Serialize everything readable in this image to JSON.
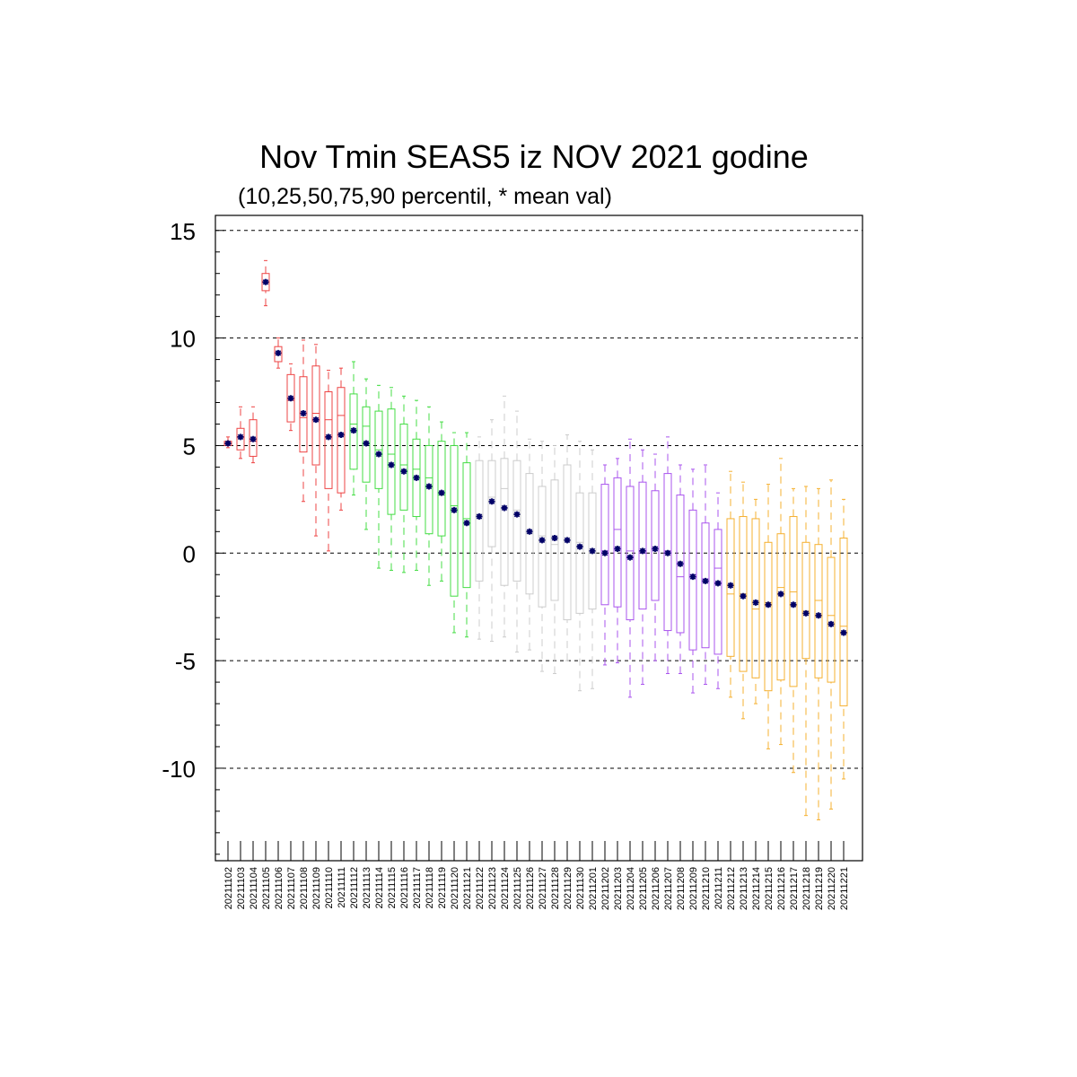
{
  "chart_data": {
    "type": "boxplot",
    "title": "Nov Tmin SEAS5 iz NOV 2021 godine",
    "subtitle": "(10,25,50,75,90 percentil, * mean val)",
    "ylim": [
      -14.3,
      15.7
    ],
    "yticks": [
      15,
      10,
      5,
      0,
      -5,
      -10
    ],
    "ytick_labels": [
      "15",
      "10",
      "5",
      "0",
      "-5",
      "-10"
    ],
    "grid": "horizontal-dashed",
    "colors": {
      "red": "#ee4444",
      "green": "#44dd44",
      "grey": "#cccccc",
      "purple": "#aa55ee",
      "orange": "#f5b030",
      "mean": "#000066"
    },
    "categories": [
      "20211102",
      "20211103",
      "20211104",
      "20211105",
      "20211106",
      "20211107",
      "20211108",
      "20211109",
      "20211110",
      "20211111",
      "20211112",
      "20211113",
      "20211114",
      "20211115",
      "20211116",
      "20211117",
      "20211118",
      "20211119",
      "20211120",
      "20211121",
      "20211122",
      "20211123",
      "20211124",
      "20211125",
      "20211126",
      "20211127",
      "20211128",
      "20211129",
      "20211130",
      "20211201",
      "20211202",
      "20211203",
      "20211204",
      "20211205",
      "20211206",
      "20211207",
      "20211208",
      "20211209",
      "20211210",
      "20211211",
      "20211212",
      "20211213",
      "20211214",
      "20211215",
      "20211216",
      "20211217",
      "20211218",
      "20211219",
      "20211220",
      "20211221"
    ],
    "boxes": [
      {
        "color": "red",
        "p10": 4.9,
        "p25": 5.0,
        "p50": 5.1,
        "p75": 5.2,
        "p90": 5.4,
        "mean": 5.1
      },
      {
        "color": "red",
        "p10": 4.4,
        "p25": 4.8,
        "p50": 5.4,
        "p75": 5.8,
        "p90": 6.8,
        "mean": 5.4
      },
      {
        "color": "red",
        "p10": 4.2,
        "p25": 4.5,
        "p50": 5.2,
        "p75": 6.2,
        "p90": 6.8,
        "mean": 5.3
      },
      {
        "color": "red",
        "p10": 11.5,
        "p25": 12.2,
        "p50": 12.6,
        "p75": 13.0,
        "p90": 13.6,
        "mean": 12.6
      },
      {
        "color": "red",
        "p10": 8.6,
        "p25": 8.9,
        "p50": 9.3,
        "p75": 9.6,
        "p90": 10.0,
        "mean": 9.3
      },
      {
        "color": "red",
        "p10": 5.7,
        "p25": 6.1,
        "p50": 7.1,
        "p75": 8.3,
        "p90": 8.8,
        "mean": 7.2
      },
      {
        "color": "red",
        "p10": 2.4,
        "p25": 4.7,
        "p50": 6.3,
        "p75": 8.2,
        "p90": 9.9,
        "mean": 6.5
      },
      {
        "color": "red",
        "p10": 0.8,
        "p25": 4.1,
        "p50": 6.5,
        "p75": 8.7,
        "p90": 9.7,
        "mean": 6.2
      },
      {
        "color": "red",
        "p10": 0.1,
        "p25": 3.0,
        "p50": 6.2,
        "p75": 7.5,
        "p90": 8.5,
        "mean": 5.4
      },
      {
        "color": "red",
        "p10": 2.0,
        "p25": 2.8,
        "p50": 6.4,
        "p75": 7.7,
        "p90": 8.6,
        "mean": 5.5
      },
      {
        "color": "green",
        "p10": 2.7,
        "p25": 3.9,
        "p50": 6.0,
        "p75": 7.4,
        "p90": 8.9,
        "mean": 5.7
      },
      {
        "color": "green",
        "p10": 1.1,
        "p25": 3.3,
        "p50": 5.9,
        "p75": 6.8,
        "p90": 8.1,
        "mean": 5.1
      },
      {
        "color": "green",
        "p10": -0.7,
        "p25": 3.0,
        "p50": 4.8,
        "p75": 6.6,
        "p90": 7.8,
        "mean": 4.6
      },
      {
        "color": "green",
        "p10": -0.8,
        "p25": 1.8,
        "p50": 4.6,
        "p75": 6.7,
        "p90": 7.7,
        "mean": 4.1
      },
      {
        "color": "green",
        "p10": -0.9,
        "p25": 2.0,
        "p50": 4.1,
        "p75": 6.0,
        "p90": 7.3,
        "mean": 3.8
      },
      {
        "color": "green",
        "p10": -0.8,
        "p25": 1.7,
        "p50": 3.9,
        "p75": 5.3,
        "p90": 7.1,
        "mean": 3.5
      },
      {
        "color": "green",
        "p10": -1.5,
        "p25": 0.9,
        "p50": 3.5,
        "p75": 5.0,
        "p90": 6.8,
        "mean": 3.1
      },
      {
        "color": "green",
        "p10": -1.3,
        "p25": 0.8,
        "p50": 2.7,
        "p75": 5.2,
        "p90": 6.1,
        "mean": 2.8
      },
      {
        "color": "green",
        "p10": -3.7,
        "p25": -2.0,
        "p50": 2.2,
        "p75": 5.0,
        "p90": 5.6,
        "mean": 2.0
      },
      {
        "color": "green",
        "p10": -3.9,
        "p25": -1.6,
        "p50": 1.6,
        "p75": 4.2,
        "p90": 5.6,
        "mean": 1.4
      },
      {
        "color": "grey",
        "p10": -4.0,
        "p25": -1.3,
        "p50": 1.8,
        "p75": 4.3,
        "p90": 5.4,
        "mean": 1.7
      },
      {
        "color": "grey",
        "p10": -4.1,
        "p25": 0.3,
        "p50": 2.6,
        "p75": 4.3,
        "p90": 6.2,
        "mean": 2.4
      },
      {
        "color": "grey",
        "p10": -3.9,
        "p25": -1.5,
        "p50": 3.0,
        "p75": 4.4,
        "p90": 7.3,
        "mean": 2.1
      },
      {
        "color": "grey",
        "p10": -4.6,
        "p25": -1.3,
        "p50": 2.0,
        "p75": 4.3,
        "p90": 6.6,
        "mean": 1.8
      },
      {
        "color": "grey",
        "p10": -4.5,
        "p25": -1.9,
        "p50": 0.9,
        "p75": 3.7,
        "p90": 5.3,
        "mean": 1.0
      },
      {
        "color": "grey",
        "p10": -5.5,
        "p25": -2.5,
        "p50": 0.8,
        "p75": 3.1,
        "p90": 5.2,
        "mean": 0.6
      },
      {
        "color": "grey",
        "p10": -5.6,
        "p25": -2.2,
        "p50": 0.4,
        "p75": 3.4,
        "p90": 5.0,
        "mean": 0.7
      },
      {
        "color": "grey",
        "p10": -5.0,
        "p25": -3.1,
        "p50": 0.6,
        "p75": 4.1,
        "p90": 5.5,
        "mean": 0.6
      },
      {
        "color": "grey",
        "p10": -6.4,
        "p25": -2.8,
        "p50": 0.5,
        "p75": 2.8,
        "p90": 5.2,
        "mean": 0.3
      },
      {
        "color": "grey",
        "p10": -6.3,
        "p25": -2.6,
        "p50": 0.0,
        "p75": 2.8,
        "p90": 4.8,
        "mean": 0.1
      },
      {
        "color": "purple",
        "p10": -5.2,
        "p25": -2.4,
        "p50": 0.1,
        "p75": 3.2,
        "p90": 4.1,
        "mean": 0.0
      },
      {
        "color": "purple",
        "p10": -5.1,
        "p25": -2.5,
        "p50": 1.1,
        "p75": 3.5,
        "p90": 4.4,
        "mean": 0.2
      },
      {
        "color": "purple",
        "p10": -6.7,
        "p25": -3.1,
        "p50": 0.1,
        "p75": 3.1,
        "p90": 5.3,
        "mean": -0.2
      },
      {
        "color": "purple",
        "p10": -6.1,
        "p25": -2.6,
        "p50": 0.0,
        "p75": 3.3,
        "p90": 4.8,
        "mean": 0.1
      },
      {
        "color": "purple",
        "p10": -5.0,
        "p25": -2.2,
        "p50": 0.2,
        "p75": 2.9,
        "p90": 4.6,
        "mean": 0.2
      },
      {
        "color": "purple",
        "p10": -5.6,
        "p25": -3.6,
        "p50": 0.1,
        "p75": 3.7,
        "p90": 5.4,
        "mean": 0.0
      },
      {
        "color": "purple",
        "p10": -5.6,
        "p25": -3.7,
        "p50": -1.1,
        "p75": 2.7,
        "p90": 4.1,
        "mean": -0.5
      },
      {
        "color": "purple",
        "p10": -6.5,
        "p25": -4.5,
        "p50": -1.0,
        "p75": 2.0,
        "p90": 3.9,
        "mean": -1.1
      },
      {
        "color": "purple",
        "p10": -6.1,
        "p25": -4.4,
        "p50": -1.2,
        "p75": 1.4,
        "p90": 4.1,
        "mean": -1.3
      },
      {
        "color": "purple",
        "p10": -6.3,
        "p25": -4.7,
        "p50": -0.7,
        "p75": 1.1,
        "p90": 2.8,
        "mean": -1.4
      },
      {
        "color": "orange",
        "p10": -6.7,
        "p25": -4.8,
        "p50": -1.9,
        "p75": 1.6,
        "p90": 3.8,
        "mean": -1.5
      },
      {
        "color": "orange",
        "p10": -7.7,
        "p25": -5.5,
        "p50": -1.9,
        "p75": 1.7,
        "p90": 3.3,
        "mean": -2.0
      },
      {
        "color": "orange",
        "p10": -7.0,
        "p25": -5.8,
        "p50": -2.6,
        "p75": 1.6,
        "p90": 2.5,
        "mean": -2.3
      },
      {
        "color": "orange",
        "p10": -9.1,
        "p25": -6.4,
        "p50": -2.3,
        "p75": 0.5,
        "p90": 3.2,
        "mean": -2.4
      },
      {
        "color": "orange",
        "p10": -8.9,
        "p25": -5.9,
        "p50": -1.6,
        "p75": 0.9,
        "p90": 4.4,
        "mean": -1.9
      },
      {
        "color": "orange",
        "p10": -10.2,
        "p25": -6.2,
        "p50": -1.8,
        "p75": 1.7,
        "p90": 3.0,
        "mean": -2.4
      },
      {
        "color": "orange",
        "p10": -12.2,
        "p25": -4.9,
        "p50": -2.7,
        "p75": 0.5,
        "p90": 3.1,
        "mean": -2.8
      },
      {
        "color": "orange",
        "p10": -12.4,
        "p25": -5.8,
        "p50": -2.2,
        "p75": 0.4,
        "p90": 3.0,
        "mean": -2.9
      },
      {
        "color": "orange",
        "p10": -11.9,
        "p25": -6.0,
        "p50": -2.9,
        "p75": -0.2,
        "p90": 3.4,
        "mean": -3.3
      },
      {
        "color": "orange",
        "p10": -10.5,
        "p25": -7.1,
        "p50": -3.4,
        "p75": 0.7,
        "p90": 2.5,
        "mean": -3.7
      }
    ]
  }
}
